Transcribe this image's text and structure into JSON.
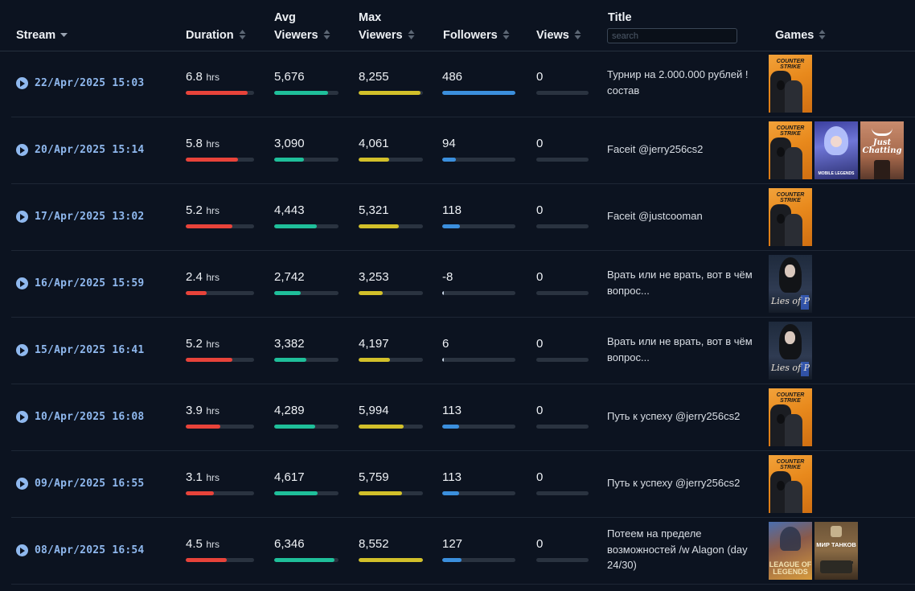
{
  "columns": {
    "stream": "Stream",
    "duration": "Duration",
    "avg_viewers_1": "Avg",
    "avg_viewers_2": "Viewers",
    "max_viewers_1": "Max",
    "max_viewers_2": "Viewers",
    "followers": "Followers",
    "views": "Views",
    "title": "Title",
    "games": "Games"
  },
  "search": {
    "placeholder": "search",
    "value": ""
  },
  "unit": "hrs",
  "colors": {
    "duration": "#e8433a",
    "avg_viewers": "#1fbf9a",
    "max_viewers": "#d2c02a",
    "followers": "#3b8fdd",
    "track": "#2a3340",
    "date": "#8fb8ee"
  },
  "rows": [
    {
      "date": "22/Apr/2025 15:03",
      "duration": "6.8",
      "avg_viewers": "5,676",
      "max_viewers": "8,255",
      "followers": "486",
      "views": "0",
      "bars": {
        "duration": 0.9,
        "avg": 0.84,
        "max": 0.96,
        "followers": 1.0,
        "views": 0
      },
      "title": "Турнир на 2.000.000 рублей ! состав",
      "games": [
        "counter-strike"
      ]
    },
    {
      "date": "20/Apr/2025 15:14",
      "duration": "5.8",
      "avg_viewers": "3,090",
      "max_viewers": "4,061",
      "followers": "94",
      "views": "0",
      "bars": {
        "duration": 0.77,
        "avg": 0.46,
        "max": 0.48,
        "followers": 0.19,
        "views": 0
      },
      "title": "Faceit @jerry256cs2",
      "games": [
        "counter-strike",
        "mobile-legends",
        "just-chatting"
      ]
    },
    {
      "date": "17/Apr/2025 13:02",
      "duration": "5.2",
      "avg_viewers": "4,443",
      "max_viewers": "5,321",
      "followers": "118",
      "views": "0",
      "bars": {
        "duration": 0.68,
        "avg": 0.66,
        "max": 0.63,
        "followers": 0.24,
        "views": 0
      },
      "title": "Faceit @justcooman",
      "games": [
        "counter-strike"
      ]
    },
    {
      "date": "16/Apr/2025 15:59",
      "duration": "2.4",
      "avg_viewers": "2,742",
      "max_viewers": "3,253",
      "followers": "-8",
      "views": "0",
      "bars": {
        "duration": 0.31,
        "avg": 0.41,
        "max": 0.38,
        "followers": 0.01,
        "views": 0
      },
      "title": "Врать или не врать, вот в чём вопрос...",
      "games": [
        "lies-of-p"
      ]
    },
    {
      "date": "15/Apr/2025 16:41",
      "duration": "5.2",
      "avg_viewers": "3,382",
      "max_viewers": "4,197",
      "followers": "6",
      "views": "0",
      "bars": {
        "duration": 0.68,
        "avg": 0.5,
        "max": 0.49,
        "followers": 0.02,
        "views": 0
      },
      "title": "Врать или не врать, вот в чём вопрос...",
      "games": [
        "lies-of-p"
      ]
    },
    {
      "date": "10/Apr/2025 16:08",
      "duration": "3.9",
      "avg_viewers": "4,289",
      "max_viewers": "5,994",
      "followers": "113",
      "views": "0",
      "bars": {
        "duration": 0.51,
        "avg": 0.64,
        "max": 0.7,
        "followers": 0.23,
        "views": 0
      },
      "title": "Путь к успеху @jerry256cs2",
      "games": [
        "counter-strike"
      ]
    },
    {
      "date": "09/Apr/2025 16:55",
      "duration": "3.1",
      "avg_viewers": "4,617",
      "max_viewers": "5,759",
      "followers": "113",
      "views": "0",
      "bars": {
        "duration": 0.41,
        "avg": 0.68,
        "max": 0.67,
        "followers": 0.23,
        "views": 0
      },
      "title": "Путь к успеху @jerry256cs2",
      "games": [
        "counter-strike"
      ]
    },
    {
      "date": "08/Apr/2025 16:54",
      "duration": "4.5",
      "avg_viewers": "6,346",
      "max_viewers": "8,552",
      "followers": "127",
      "views": "0",
      "bars": {
        "duration": 0.6,
        "avg": 0.94,
        "max": 1.0,
        "followers": 0.26,
        "views": 0
      },
      "title": "Потеем на пределе возможностей /w Alagon (day 24/30)",
      "games": [
        "league-of-legends",
        "world-of-tanks"
      ]
    }
  ],
  "game_art": {
    "counter-strike": {
      "name": "Counter-Strike",
      "logo": "COUNTER STRIKE"
    },
    "mobile-legends": {
      "name": "Mobile Legends",
      "logo": "MOBILE LEGENDS"
    },
    "just-chatting": {
      "name": "Just Chatting",
      "logo": "Just Chatting"
    },
    "lies-of-p": {
      "name": "Lies of P",
      "logo": "Lies of P"
    },
    "league-of-legends": {
      "name": "League of Legends",
      "logo": "LEAGUE OF LEGENDS"
    },
    "world-of-tanks": {
      "name": "World of Tanks",
      "logo": "МИР ТАНКОВ"
    }
  }
}
